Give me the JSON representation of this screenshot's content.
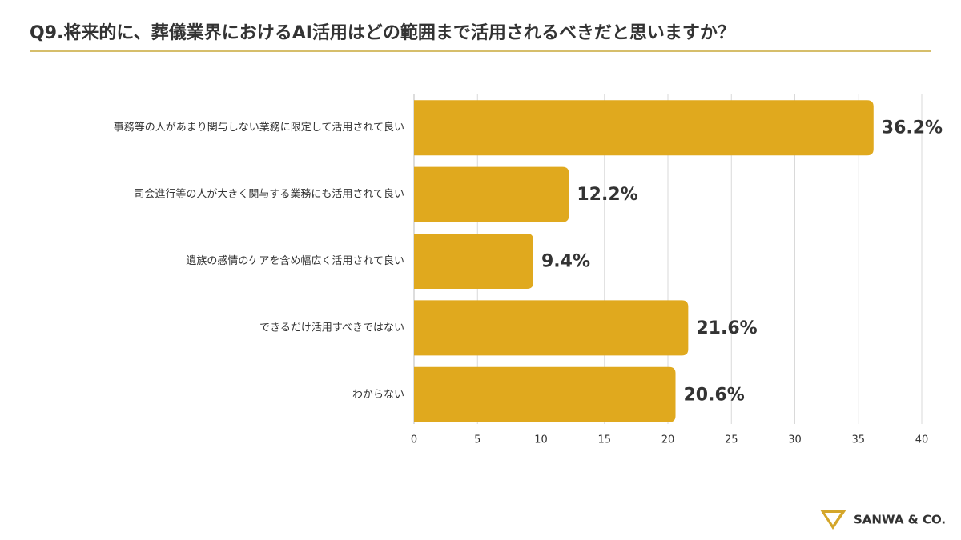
{
  "chart_data": {
    "type": "barh",
    "title": "Q9.将来的に、葬儀業界におけるAI活用はどの範囲まで活用されるべきだと思いますか？",
    "categories": [
      "事務等の人があまり関与しない業務に限定して活用されて良い",
      "司会進行等の人が大きく関与する業務にも活用されて良い",
      "遺族の感情のケアを含め幅広く活用されて良い",
      "できるだけ活用すべきではない",
      "わからない"
    ],
    "values": [
      36.2,
      12.2,
      9.4,
      21.6,
      20.6
    ],
    "value_labels": [
      "36.2%",
      "12.2%",
      "9.4%",
      "21.6%",
      "20.6%"
    ],
    "value_label_colors": [
      "#b8900f",
      "#f2b705",
      "#f2b705",
      "#f2b705",
      "#f2b705"
    ],
    "color": "#e0a91e",
    "xlim": [
      0,
      40
    ],
    "xticks": [
      0,
      5,
      10,
      15,
      20,
      25,
      30,
      35,
      40
    ],
    "grid": true
  },
  "brand": "SANWA & CO."
}
